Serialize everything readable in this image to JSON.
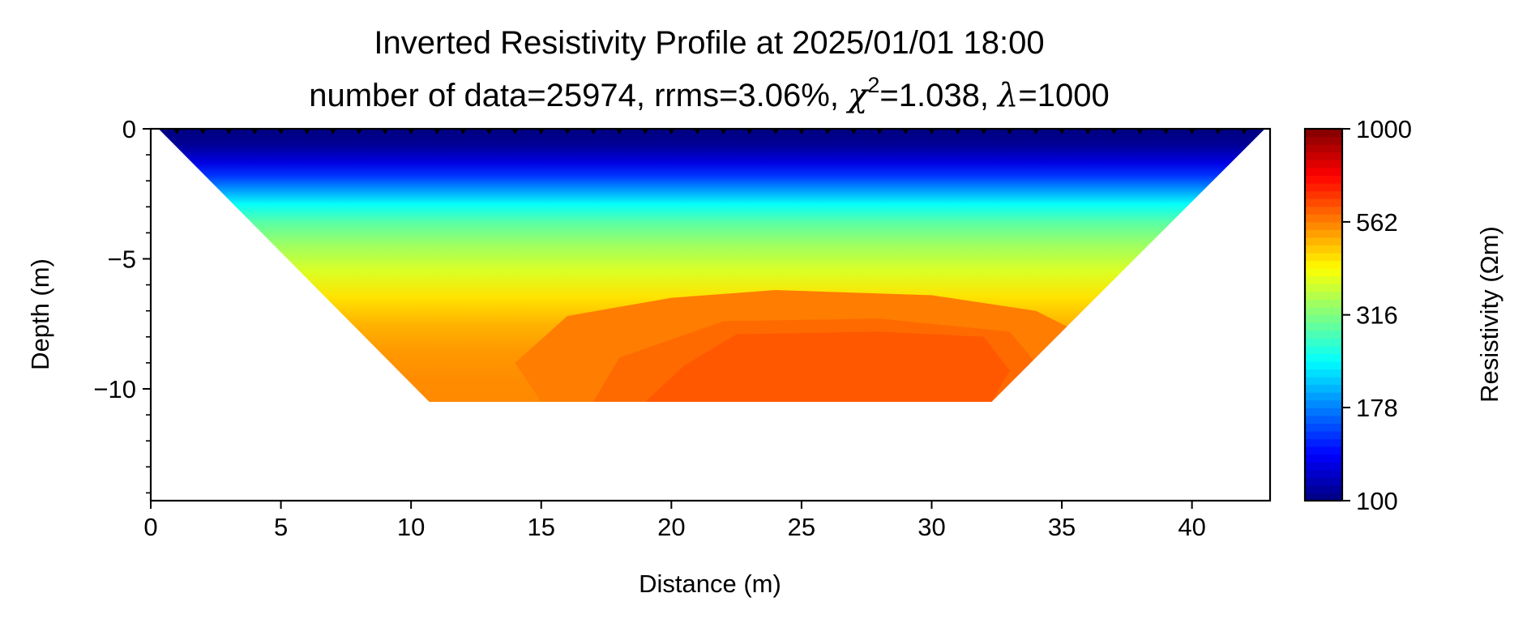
{
  "chart_data": {
    "type": "heatmap",
    "title": "Inverted Resistivity Profile at 2025/01/01 18:00",
    "subtitle": {
      "prefix": "number of data=25974, rrms=3.06%, ",
      "chi_symbol": "χ",
      "chi_exponent": "2",
      "chi_value": "=1.038, ",
      "lambda_symbol": "λ",
      "lambda_value": "=1000"
    },
    "xlabel": "Distance (m)",
    "ylabel": "Depth (m)",
    "xlim": [
      0,
      43
    ],
    "ylim": [
      -14.3,
      0
    ],
    "x_ticks": [
      0,
      5,
      10,
      15,
      20,
      25,
      30,
      35,
      40
    ],
    "x_tick_labels": [
      "0",
      "5",
      "10",
      "15",
      "20",
      "25",
      "30",
      "35",
      "40"
    ],
    "y_ticks": [
      0,
      -5,
      -10
    ],
    "y_tick_labels": [
      "0",
      "−5",
      "−10"
    ],
    "y_minor_ticks": [
      -1,
      -2,
      -3,
      -4,
      -6,
      -7,
      -8,
      -9,
      -11,
      -12,
      -13,
      -14
    ],
    "electrode_spacing_m": 1,
    "grid": false,
    "section_outline": [
      {
        "x": 0.3,
        "depth": 0
      },
      {
        "x": 42.8,
        "depth": 0
      },
      {
        "x": 32.3,
        "depth": -10.5
      },
      {
        "x": 10.7,
        "depth": -10.5
      }
    ],
    "depth_profile": [
      {
        "depth": 0.0,
        "resistivity": 100
      },
      {
        "depth": -0.6,
        "resistivity": 105
      },
      {
        "depth": -1.3,
        "resistivity": 125
      },
      {
        "depth": -1.8,
        "resistivity": 150
      },
      {
        "depth": -2.3,
        "resistivity": 185
      },
      {
        "depth": -2.9,
        "resistivity": 240
      },
      {
        "depth": -3.6,
        "resistivity": 290
      },
      {
        "depth": -4.5,
        "resistivity": 340
      },
      {
        "depth": -5.5,
        "resistivity": 390
      },
      {
        "depth": -6.5,
        "resistivity": 450
      },
      {
        "depth": -7.5,
        "resistivity": 500
      },
      {
        "depth": -8.5,
        "resistivity": 530
      },
      {
        "depth": -9.5,
        "resistivity": 545
      },
      {
        "depth": -10.5,
        "resistivity": 550
      }
    ],
    "deep_zones": [
      {
        "resistivity": 565,
        "outline": [
          [
            16,
            -7.2
          ],
          [
            20,
            -6.5
          ],
          [
            24,
            -6.2
          ],
          [
            30,
            -6.4
          ],
          [
            34,
            -7.0
          ],
          [
            36,
            -8.0
          ],
          [
            35,
            -10.5
          ],
          [
            15,
            -10.5
          ],
          [
            14,
            -9.0
          ]
        ]
      },
      {
        "resistivity": 590,
        "outline": [
          [
            18,
            -8.8
          ],
          [
            22,
            -7.4
          ],
          [
            28,
            -7.3
          ],
          [
            33,
            -7.8
          ],
          [
            34,
            -9.0
          ],
          [
            33,
            -10.5
          ],
          [
            17,
            -10.5
          ]
        ]
      },
      {
        "resistivity": 615,
        "outline": [
          [
            19,
            -10.5
          ],
          [
            20.5,
            -9.1
          ],
          [
            22.5,
            -7.9
          ],
          [
            28,
            -7.8
          ],
          [
            32,
            -8.0
          ],
          [
            33,
            -9.3
          ],
          [
            32.3,
            -10.5
          ]
        ]
      }
    ],
    "colorbar": {
      "label": "Resistivity (Ωm)",
      "scale": "log",
      "colormap": "jet",
      "range": [
        100,
        1000
      ],
      "ticks": [
        100,
        178,
        316,
        562,
        1000
      ],
      "tick_labels": [
        "100",
        "178",
        "316",
        "562",
        "1000"
      ]
    }
  }
}
